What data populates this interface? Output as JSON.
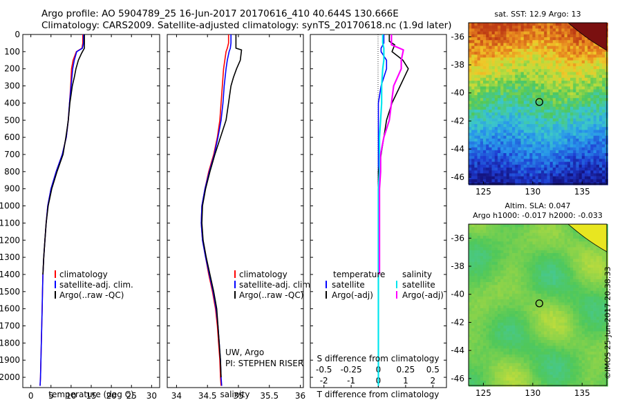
{
  "header": {
    "title": "Argo profile: AO 5904789_25 16-Jun-2017 20170616_410 40.644S 130.666E",
    "subtitle": "Climatology: CARS2009. Satellite-adjusted climatology: synTS_20170618.nc (1.9d later)"
  },
  "stamp": "©IMOS 25-Jun-2017 20:38:33",
  "colors": {
    "climatology": "#ff0000",
    "satellite": "#0000ff",
    "argo": "#000000",
    "salinity_satellite": "#00e5ee",
    "salinity_argo": "#ff00ff"
  },
  "depth_ticks": [
    "0",
    "100",
    "200",
    "300",
    "400",
    "500",
    "600",
    "700",
    "800",
    "900",
    "1000",
    "1100",
    "1200",
    "1300",
    "1400",
    "1500",
    "1600",
    "1700",
    "1800",
    "1900",
    "2000"
  ],
  "chart_data": [
    {
      "type": "line",
      "id": "temperature",
      "xlabel": "temperature (deg C)",
      "ylabel": "",
      "xlim": [
        -2,
        32
      ],
      "ylim": [
        2060,
        0
      ],
      "x_ticks": [
        "0",
        "5",
        "10",
        "15",
        "20",
        "25",
        "30"
      ],
      "legend": [
        "climatology",
        "satellite-adj. clim.",
        "Argo(..raw -QC)"
      ],
      "series": [
        {
          "name": "climatology",
          "color": "#ff0000",
          "points": [
            [
              12.9,
              0
            ],
            [
              12.9,
              50
            ],
            [
              12.7,
              80
            ],
            [
              11.3,
              100
            ],
            [
              10.5,
              150
            ],
            [
              10.1,
              200
            ],
            [
              9.9,
              300
            ],
            [
              9.6,
              400
            ],
            [
              9.3,
              500
            ],
            [
              8.8,
              600
            ],
            [
              7.8,
              700
            ],
            [
              6.3,
              800
            ],
            [
              5.0,
              900
            ],
            [
              4.2,
              1000
            ],
            [
              3.8,
              1100
            ],
            [
              3.5,
              1200
            ],
            [
              3.2,
              1300
            ],
            [
              3.0,
              1400
            ],
            [
              2.9,
              1500
            ],
            [
              2.8,
              1600
            ],
            [
              2.7,
              1700
            ],
            [
              2.6,
              1800
            ],
            [
              2.5,
              1900
            ],
            [
              2.4,
              2000
            ],
            [
              2.3,
              2050
            ]
          ]
        },
        {
          "name": "satellite-adj. clim.",
          "color": "#0000ff",
          "points": [
            [
              13.1,
              0
            ],
            [
              13.1,
              50
            ],
            [
              12.8,
              80
            ],
            [
              11.4,
              100
            ],
            [
              10.8,
              150
            ],
            [
              10.4,
              200
            ],
            [
              10.0,
              300
            ],
            [
              9.6,
              400
            ],
            [
              9.3,
              500
            ],
            [
              8.8,
              600
            ],
            [
              7.8,
              700
            ],
            [
              6.3,
              800
            ],
            [
              5.0,
              900
            ],
            [
              4.2,
              1000
            ],
            [
              3.8,
              1100
            ],
            [
              3.5,
              1200
            ],
            [
              3.2,
              1300
            ],
            [
              3.0,
              1400
            ],
            [
              2.9,
              1500
            ],
            [
              2.8,
              1600
            ],
            [
              2.7,
              1700
            ],
            [
              2.6,
              1800
            ],
            [
              2.5,
              1900
            ],
            [
              2.4,
              2000
            ],
            [
              2.3,
              2050
            ]
          ]
        },
        {
          "name": "Argo(..raw -QC)",
          "color": "#000000",
          "points": [
            [
              13.3,
              0
            ],
            [
              13.3,
              80
            ],
            [
              12.6,
              110
            ],
            [
              11.8,
              150
            ],
            [
              11.2,
              200
            ],
            [
              10.8,
              250
            ],
            [
              10.3,
              300
            ],
            [
              10.0,
              350
            ],
            [
              9.7,
              400
            ],
            [
              9.5,
              450
            ],
            [
              9.3,
              500
            ],
            [
              9.0,
              550
            ],
            [
              8.7,
              600
            ],
            [
              8.0,
              700
            ],
            [
              6.5,
              800
            ],
            [
              5.2,
              900
            ],
            [
              4.3,
              1000
            ],
            [
              3.8,
              1100
            ],
            [
              3.5,
              1200
            ],
            [
              3.2,
              1300
            ],
            [
              3.0,
              1400
            ]
          ]
        }
      ]
    },
    {
      "type": "line",
      "id": "salinity",
      "xlabel": "salinity",
      "ylabel": "",
      "xlim": [
        33.85,
        36.05
      ],
      "ylim": [
        2060,
        0
      ],
      "x_ticks": [
        "34",
        "34.5",
        "35",
        "35.5",
        "36"
      ],
      "legend": [
        "climatology",
        "satellite-adj. clim.",
        "Argo(..raw -QC)"
      ],
      "annotation": [
        "UW, Argo",
        "PI: STEPHEN RISER"
      ],
      "series": [
        {
          "name": "climatology",
          "color": "#ff0000",
          "points": [
            [
              34.84,
              0
            ],
            [
              34.84,
              50
            ],
            [
              34.82,
              80
            ],
            [
              34.8,
              100
            ],
            [
              34.78,
              150
            ],
            [
              34.76,
              200
            ],
            [
              34.74,
              300
            ],
            [
              34.72,
              400
            ],
            [
              34.7,
              500
            ],
            [
              34.66,
              600
            ],
            [
              34.6,
              700
            ],
            [
              34.52,
              800
            ],
            [
              34.46,
              900
            ],
            [
              34.41,
              1000
            ],
            [
              34.4,
              1100
            ],
            [
              34.42,
              1200
            ],
            [
              34.47,
              1300
            ],
            [
              34.52,
              1400
            ],
            [
              34.58,
              1500
            ],
            [
              34.63,
              1600
            ],
            [
              34.66,
              1700
            ],
            [
              34.68,
              1800
            ],
            [
              34.7,
              1900
            ],
            [
              34.71,
              2000
            ],
            [
              34.72,
              2050
            ]
          ]
        },
        {
          "name": "satellite-adj. clim.",
          "color": "#0000ff",
          "points": [
            [
              34.88,
              0
            ],
            [
              34.88,
              50
            ],
            [
              34.87,
              80
            ],
            [
              34.85,
              100
            ],
            [
              34.82,
              150
            ],
            [
              34.8,
              200
            ],
            [
              34.77,
              300
            ],
            [
              34.75,
              400
            ],
            [
              34.72,
              500
            ],
            [
              34.67,
              600
            ],
            [
              34.61,
              700
            ],
            [
              34.53,
              800
            ],
            [
              34.46,
              900
            ],
            [
              34.41,
              1000
            ],
            [
              34.4,
              1100
            ],
            [
              34.42,
              1200
            ],
            [
              34.47,
              1300
            ],
            [
              34.53,
              1400
            ],
            [
              34.59,
              1500
            ],
            [
              34.64,
              1600
            ],
            [
              34.67,
              1700
            ],
            [
              34.69,
              1800
            ],
            [
              34.71,
              1900
            ],
            [
              34.72,
              2000
            ],
            [
              34.73,
              2050
            ]
          ]
        },
        {
          "name": "Argo(..raw -QC)",
          "color": "#000000",
          "points": [
            [
              34.96,
              0
            ],
            [
              34.96,
              80
            ],
            [
              35.05,
              90
            ],
            [
              35.03,
              150
            ],
            [
              34.97,
              200
            ],
            [
              34.92,
              250
            ],
            [
              34.88,
              300
            ],
            [
              34.84,
              400
            ],
            [
              34.8,
              500
            ],
            [
              34.71,
              600
            ],
            [
              34.62,
              700
            ],
            [
              34.54,
              800
            ],
            [
              34.47,
              900
            ],
            [
              34.42,
              1000
            ],
            [
              34.41,
              1100
            ],
            [
              34.43,
              1200
            ],
            [
              34.48,
              1300
            ],
            [
              34.54,
              1400
            ],
            [
              34.6,
              1500
            ],
            [
              34.65,
              1600
            ],
            [
              34.67,
              1700
            ],
            [
              34.69,
              1800
            ],
            [
              34.71,
              1900
            ],
            [
              34.72,
              2000
            ]
          ]
        }
      ]
    },
    {
      "type": "line",
      "id": "difference",
      "xlabel": "T difference from climatology",
      "x2label": "S difference from climatology",
      "ylabel": "",
      "xlim": [
        -2.5,
        2.5
      ],
      "ylim": [
        2060,
        0
      ],
      "x_ticks": [
        "-2",
        "-1",
        "0",
        "1",
        "2"
      ],
      "x2_ticks": [
        "-0.5",
        "-0.25",
        "0",
        "0.25",
        "0.5"
      ],
      "legend_temperature": [
        "temperature",
        "satellite",
        "Argo(-adj)"
      ],
      "legend_salinity": [
        "salinity",
        "satellite",
        "Argo(-adj)"
      ],
      "series": [
        {
          "name": "temperature satellite",
          "color": "#0000ff",
          "points": [
            [
              0.2,
              0
            ],
            [
              0.2,
              50
            ],
            [
              0.1,
              80
            ],
            [
              0.1,
              100
            ],
            [
              0.3,
              150
            ],
            [
              0.3,
              200
            ],
            [
              0.1,
              300
            ],
            [
              0.0,
              400
            ],
            [
              0.0,
              500
            ],
            [
              0.0,
              600
            ],
            [
              0.0,
              700
            ],
            [
              0.0,
              800
            ],
            [
              0.0,
              900
            ],
            [
              0.0,
              1000
            ],
            [
              0.0,
              1200
            ],
            [
              0.0,
              1500
            ],
            [
              0.0,
              2050
            ]
          ]
        },
        {
          "name": "temperature Argo(-adj)",
          "color": "#000000",
          "points": [
            [
              0.4,
              0
            ],
            [
              0.4,
              40
            ],
            [
              0.6,
              60
            ],
            [
              0.5,
              100
            ],
            [
              0.9,
              150
            ],
            [
              1.1,
              200
            ],
            [
              0.8,
              300
            ],
            [
              0.5,
              400
            ],
            [
              0.3,
              500
            ],
            [
              0.2,
              600
            ],
            [
              0.1,
              700
            ],
            [
              0.0,
              800
            ],
            [
              0.0,
              900
            ],
            [
              0.0,
              1000
            ],
            [
              0.0,
              1200
            ],
            [
              0.0,
              1400
            ]
          ]
        },
        {
          "name": "salinity satellite",
          "color": "#00e5ee",
          "points": [
            [
              0.04,
              0
            ],
            [
              0.04,
              50
            ],
            [
              0.05,
              80
            ],
            [
              0.05,
              100
            ],
            [
              0.05,
              150
            ],
            [
              0.04,
              200
            ],
            [
              0.03,
              300
            ],
            [
              0.03,
              400
            ],
            [
              0.02,
              500
            ],
            [
              0.01,
              600
            ],
            [
              0.01,
              700
            ],
            [
              0.01,
              800
            ],
            [
              0.0,
              900
            ],
            [
              0.0,
              1000
            ],
            [
              0.0,
              1200
            ],
            [
              0.0,
              1500
            ],
            [
              0.0,
              2050
            ]
          ]
        },
        {
          "name": "salinity Argo(-adj)",
          "color": "#ff00ff",
          "points": [
            [
              0.12,
              0
            ],
            [
              0.12,
              60
            ],
            [
              0.23,
              90
            ],
            [
              0.21,
              150
            ],
            [
              0.21,
              200
            ],
            [
              0.14,
              300
            ],
            [
              0.12,
              400
            ],
            [
              0.1,
              500
            ],
            [
              0.05,
              600
            ],
            [
              0.02,
              700
            ],
            [
              0.02,
              800
            ],
            [
              0.01,
              900
            ],
            [
              0.01,
              1000
            ],
            [
              0.01,
              1200
            ],
            [
              0.01,
              1400
            ]
          ]
        }
      ]
    },
    {
      "type": "heatmap",
      "id": "sst_map",
      "title": "sat. SST: 12.9 Argo: 13",
      "xlim": [
        123.5,
        137.5
      ],
      "ylim": [
        -46.5,
        -35
      ],
      "x_ticks": [
        "125",
        "130",
        "135"
      ],
      "y_ticks": [
        "-36",
        "-38",
        "-40",
        "-42",
        "-44",
        "-46"
      ],
      "marker": [
        130.666,
        -40.644
      ]
    },
    {
      "type": "heatmap",
      "id": "sla_map",
      "title": "Altim. SLA: 0.047",
      "subtitle": "Argo h1000: -0.017 h2000: -0.033",
      "xlim": [
        123.5,
        137.5
      ],
      "ylim": [
        -46.5,
        -35
      ],
      "x_ticks": [
        "125",
        "130",
        "135"
      ],
      "y_ticks": [
        "-36",
        "-38",
        "-40",
        "-42",
        "-44",
        "-46"
      ],
      "marker": [
        130.666,
        -40.644
      ]
    }
  ]
}
